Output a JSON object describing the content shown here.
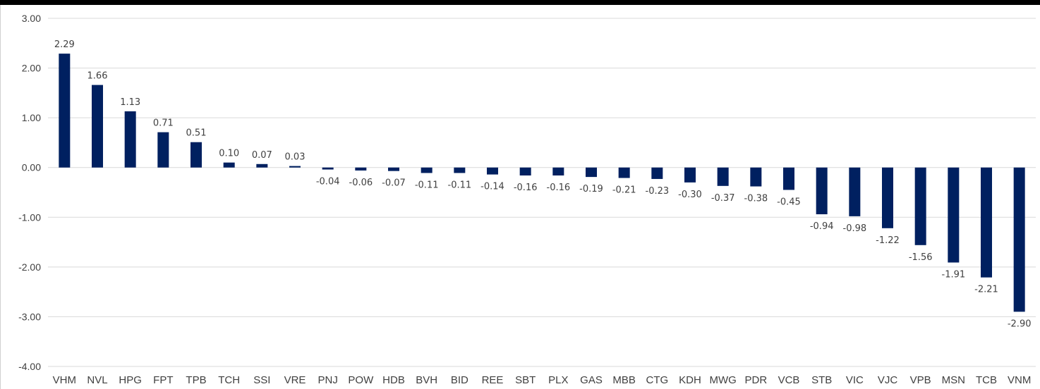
{
  "chart_data": {
    "type": "bar",
    "title": "",
    "xlabel": "",
    "ylabel": "",
    "ylim": [
      -4,
      3
    ],
    "y_ticks": [
      "3.00",
      "2.00",
      "1.00",
      "0.00",
      "-1.00",
      "-2.00",
      "-3.00",
      "-4.00"
    ],
    "grid": true,
    "bar_color": "#002060",
    "categories": [
      "VHM",
      "NVL",
      "HPG",
      "FPT",
      "TPB",
      "TCH",
      "SSI",
      "VRE",
      "PNJ",
      "POW",
      "HDB",
      "BVH",
      "BID",
      "REE",
      "SBT",
      "PLX",
      "GAS",
      "MBB",
      "CTG",
      "KDH",
      "MWG",
      "PDR",
      "VCB",
      "STB",
      "VIC",
      "VJC",
      "VPB",
      "MSN",
      "TCB",
      "VNM"
    ],
    "values": [
      2.29,
      1.66,
      1.13,
      0.71,
      0.51,
      0.1,
      0.07,
      0.03,
      -0.04,
      -0.06,
      -0.07,
      -0.11,
      -0.11,
      -0.14,
      -0.16,
      -0.16,
      -0.19,
      -0.21,
      -0.23,
      -0.3,
      -0.37,
      -0.38,
      -0.45,
      -0.94,
      -0.98,
      -1.22,
      -1.56,
      -1.91,
      -2.21,
      -2.9
    ],
    "data_labels": [
      "2.29",
      "1.66",
      "1.13",
      "0.71",
      "0.51",
      "0.10",
      "0.07",
      "0.03",
      "-0.04",
      "-0.06",
      "-0.07",
      "-0.11",
      "-0.11",
      "-0.14",
      "-0.16",
      "-0.16",
      "-0.19",
      "-0.21",
      "-0.23",
      "-0.30",
      "-0.37",
      "-0.38",
      "-0.45",
      "-0.94",
      "-0.98",
      "-1.22",
      "-1.56",
      "-1.91",
      "-2.21",
      "-2.90"
    ]
  }
}
